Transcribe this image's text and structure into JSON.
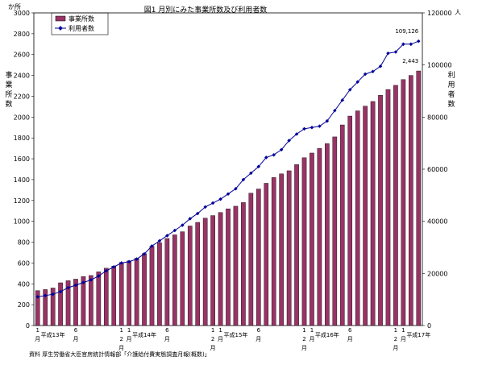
{
  "chart_data": {
    "type": "bar",
    "title": "図1 月別にみた事業所数及び利用者数",
    "left_unit": "か所",
    "right_unit": "人",
    "ylabel_left": "事業所数",
    "ylabel_right": "利用者数",
    "ylim_left": [
      0,
      3000
    ],
    "ylim_right": [
      0,
      120000
    ],
    "yticks_left": [
      "0",
      "200",
      "400",
      "600",
      "800",
      "1000",
      "1200",
      "1400",
      "1600",
      "1800",
      "2000",
      "2200",
      "2400",
      "2600",
      "2800",
      "3000"
    ],
    "yticks_right": [
      "0",
      "20000",
      "40000",
      "60000",
      "80000",
      "100000",
      "120000"
    ],
    "legend": "top-left",
    "grid": false,
    "series": [
      {
        "name": "事業所数",
        "kind": "bar",
        "axis": "left",
        "color": "#993366",
        "values": [
          335,
          345,
          360,
          410,
          430,
          445,
          470,
          480,
          515,
          550,
          570,
          605,
          620,
          645,
          690,
          760,
          795,
          835,
          870,
          900,
          955,
          990,
          1030,
          1055,
          1085,
          1120,
          1145,
          1180,
          1270,
          1310,
          1365,
          1420,
          1455,
          1485,
          1545,
          1610,
          1655,
          1700,
          1745,
          1810,
          1925,
          2010,
          2060,
          2105,
          2150,
          2210,
          2265,
          2305,
          2360,
          2400,
          2443
        ],
        "last_label": "2,443"
      },
      {
        "name": "利用者数",
        "kind": "line",
        "axis": "right",
        "color": "#000099",
        "marker": "diamond",
        "values": [
          11000,
          11500,
          12000,
          13000,
          14500,
          15500,
          16500,
          17500,
          19000,
          21000,
          22500,
          24000,
          24500,
          25500,
          27500,
          30500,
          32500,
          34500,
          36500,
          38500,
          41000,
          43000,
          45500,
          47000,
          48500,
          50500,
          52500,
          56000,
          58500,
          61000,
          64500,
          65500,
          67500,
          71000,
          73500,
          75500,
          76000,
          76500,
          78500,
          82500,
          86500,
          90500,
          93500,
          96500,
          97500,
          99500,
          104500,
          105000,
          108000,
          108000,
          109126
        ],
        "last_label": "109,126"
      }
    ],
    "x_labels": [
      {
        "i": 0,
        "text": "1",
        "sub": "月"
      },
      {
        "i": 2,
        "text": "平成13年"
      },
      {
        "i": 5,
        "text": "6",
        "sub": "月"
      },
      {
        "i": 11,
        "text": "1",
        "sub": "2"
      },
      {
        "i": 12,
        "text": "1",
        "sub": "月"
      },
      {
        "i": 14,
        "text": "平成14年"
      },
      {
        "i": 17,
        "text": "6",
        "sub": "月"
      },
      {
        "i": 23,
        "text": "1",
        "sub": "2"
      },
      {
        "i": 24,
        "text": "1",
        "sub": "月"
      },
      {
        "i": 26,
        "text": "平成15年"
      },
      {
        "i": 29,
        "text": "6",
        "sub": "月"
      },
      {
        "i": 35,
        "text": "1",
        "sub": "2"
      },
      {
        "i": 36,
        "text": "1",
        "sub": "月"
      },
      {
        "i": 38,
        "text": "平成16年"
      },
      {
        "i": 41,
        "text": "6",
        "sub": "月"
      },
      {
        "i": 47,
        "text": "1",
        "sub": "2"
      },
      {
        "i": 48,
        "text": "1",
        "sub": "月"
      },
      {
        "i": 50,
        "text": "平成17年"
      }
    ],
    "x_sub2": {
      "11": "月",
      "23": "月",
      "35": "月",
      "47": "月"
    },
    "source": "資料 厚生労働省大臣官房統計情報部「介護給付費実態調査月報(概数)」"
  }
}
